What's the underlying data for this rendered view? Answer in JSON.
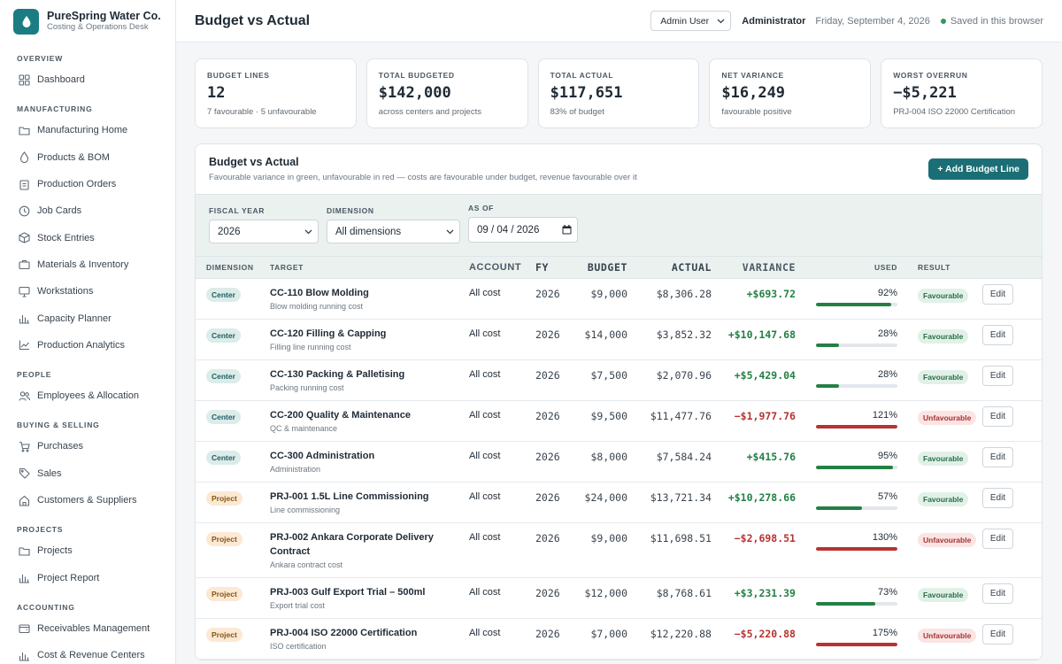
{
  "brand": {
    "name": "PureSpring Water Co.",
    "subtitle": "Costing & Operations Desk"
  },
  "sidebar": [
    {
      "section": "OVERVIEW",
      "items": [
        {
          "label": "Dashboard",
          "icon": "grid-icon"
        }
      ]
    },
    {
      "section": "MANUFACTURING",
      "items": [
        {
          "label": "Manufacturing Home",
          "icon": "folder-icon"
        },
        {
          "label": "Products & BOM",
          "icon": "droplet-icon"
        },
        {
          "label": "Production Orders",
          "icon": "clipboard-icon"
        },
        {
          "label": "Job Cards",
          "icon": "clock-icon"
        },
        {
          "label": "Stock Entries",
          "icon": "box-icon"
        },
        {
          "label": "Materials & Inventory",
          "icon": "briefcase-icon"
        },
        {
          "label": "Workstations",
          "icon": "monitor-icon"
        },
        {
          "label": "Capacity Planner",
          "icon": "bar-chart-icon"
        },
        {
          "label": "Production Analytics",
          "icon": "line-chart-icon"
        }
      ]
    },
    {
      "section": "PEOPLE",
      "items": [
        {
          "label": "Employees & Allocation",
          "icon": "users-icon"
        }
      ]
    },
    {
      "section": "BUYING & SELLING",
      "items": [
        {
          "label": "Purchases",
          "icon": "cart-icon"
        },
        {
          "label": "Sales",
          "icon": "tag-icon"
        },
        {
          "label": "Customers & Suppliers",
          "icon": "home-icon"
        }
      ]
    },
    {
      "section": "PROJECTS",
      "items": [
        {
          "label": "Projects",
          "icon": "folder-icon"
        },
        {
          "label": "Project Report",
          "icon": "bar-chart-icon"
        }
      ]
    },
    {
      "section": "ACCOUNTING",
      "items": [
        {
          "label": "Receivables Management",
          "icon": "wallet-icon"
        },
        {
          "label": "Cost & Revenue Centers",
          "icon": "chart-icon"
        }
      ]
    }
  ],
  "topbar": {
    "title": "Budget vs Actual",
    "user": "Admin User",
    "role": "Administrator",
    "date": "Friday, September 4, 2026",
    "saved": "Saved in this browser"
  },
  "kpis": [
    {
      "label": "BUDGET LINES",
      "value": "12",
      "sub": "7 favourable · 5 unfavourable"
    },
    {
      "label": "TOTAL BUDGETED",
      "value": "$142,000",
      "sub": "across centers and projects"
    },
    {
      "label": "TOTAL ACTUAL",
      "value": "$117,651",
      "sub": "83% of budget"
    },
    {
      "label": "NET VARIANCE",
      "value": "$16,249",
      "sub": "favourable positive"
    },
    {
      "label": "WORST OVERRUN",
      "value": "−$5,221",
      "sub": "PRJ-004 ISO 22000 Certification"
    }
  ],
  "panel": {
    "title": "Budget vs Actual",
    "subtitle": "Favourable variance in green, unfavourable in red — costs are favourable under budget, revenue favourable over it",
    "add_label": "+ Add Budget Line"
  },
  "filters": {
    "fy_label": "FISCAL YEAR",
    "fy_value": "2026",
    "dim_label": "DIMENSION",
    "dim_value": "All dimensions",
    "asof_label": "AS OF",
    "asof_value": "09 / 04 / 2026"
  },
  "columns": [
    "DIMENSION",
    "TARGET",
    "ACCOUNT",
    "FY",
    "BUDGET",
    "ACTUAL",
    "VARIANCE",
    "USED",
    "RESULT"
  ],
  "rows": [
    {
      "dim": "Center",
      "name": "CC-110 Blow Molding",
      "desc": "Blow molding running cost",
      "account": "All cost",
      "fy": "2026",
      "budget": "$9,000",
      "actual": "$8,306.28",
      "variance": "+$693.72",
      "used": "92%",
      "used_val": 92,
      "result": "Favourable",
      "edit": "Edit"
    },
    {
      "dim": "Center",
      "name": "CC-120 Filling & Capping",
      "desc": "Filling line running cost",
      "account": "All cost",
      "fy": "2026",
      "budget": "$14,000",
      "actual": "$3,852.32",
      "variance": "+$10,147.68",
      "used": "28%",
      "used_val": 28,
      "result": "Favourable",
      "edit": "Edit"
    },
    {
      "dim": "Center",
      "name": "CC-130 Packing & Palletising",
      "desc": "Packing running cost",
      "account": "All cost",
      "fy": "2026",
      "budget": "$7,500",
      "actual": "$2,070.96",
      "variance": "+$5,429.04",
      "used": "28%",
      "used_val": 28,
      "result": "Favourable",
      "edit": "Edit"
    },
    {
      "dim": "Center",
      "name": "CC-200 Quality & Maintenance",
      "desc": "QC & maintenance",
      "account": "All cost",
      "fy": "2026",
      "budget": "$9,500",
      "actual": "$11,477.76",
      "variance": "−$1,977.76",
      "used": "121%",
      "used_val": 121,
      "result": "Unfavourable",
      "edit": "Edit"
    },
    {
      "dim": "Center",
      "name": "CC-300 Administration",
      "desc": "Administration",
      "account": "All cost",
      "fy": "2026",
      "budget": "$8,000",
      "actual": "$7,584.24",
      "variance": "+$415.76",
      "used": "95%",
      "used_val": 95,
      "result": "Favourable",
      "edit": "Edit"
    },
    {
      "dim": "Project",
      "name": "PRJ-001 1.5L Line Commissioning",
      "desc": "Line commissioning",
      "account": "All cost",
      "fy": "2026",
      "budget": "$24,000",
      "actual": "$13,721.34",
      "variance": "+$10,278.66",
      "used": "57%",
      "used_val": 57,
      "result": "Favourable",
      "edit": "Edit"
    },
    {
      "dim": "Project",
      "name": "PRJ-002 Ankara Corporate Delivery Contract",
      "desc": "Ankara contract cost",
      "account": "All cost",
      "fy": "2026",
      "budget": "$9,000",
      "actual": "$11,698.51",
      "variance": "−$2,698.51",
      "used": "130%",
      "used_val": 130,
      "result": "Unfavourable",
      "edit": "Edit"
    },
    {
      "dim": "Project",
      "name": "PRJ-003 Gulf Export Trial – 500ml",
      "desc": "Export trial cost",
      "account": "All cost",
      "fy": "2026",
      "budget": "$12,000",
      "actual": "$8,768.61",
      "variance": "+$3,231.39",
      "used": "73%",
      "used_val": 73,
      "result": "Favourable",
      "edit": "Edit"
    },
    {
      "dim": "Project",
      "name": "PRJ-004 ISO 22000 Certification",
      "desc": "ISO certification",
      "account": "All cost",
      "fy": "2026",
      "budget": "$7,000",
      "actual": "$12,220.88",
      "variance": "−$5,220.88",
      "used": "175%",
      "used_val": 175,
      "result": "Unfavourable",
      "edit": "Edit"
    }
  ],
  "colors": {
    "accent": "#1b6e75",
    "favourable": "#238045",
    "unfavourable": "#b83232"
  }
}
